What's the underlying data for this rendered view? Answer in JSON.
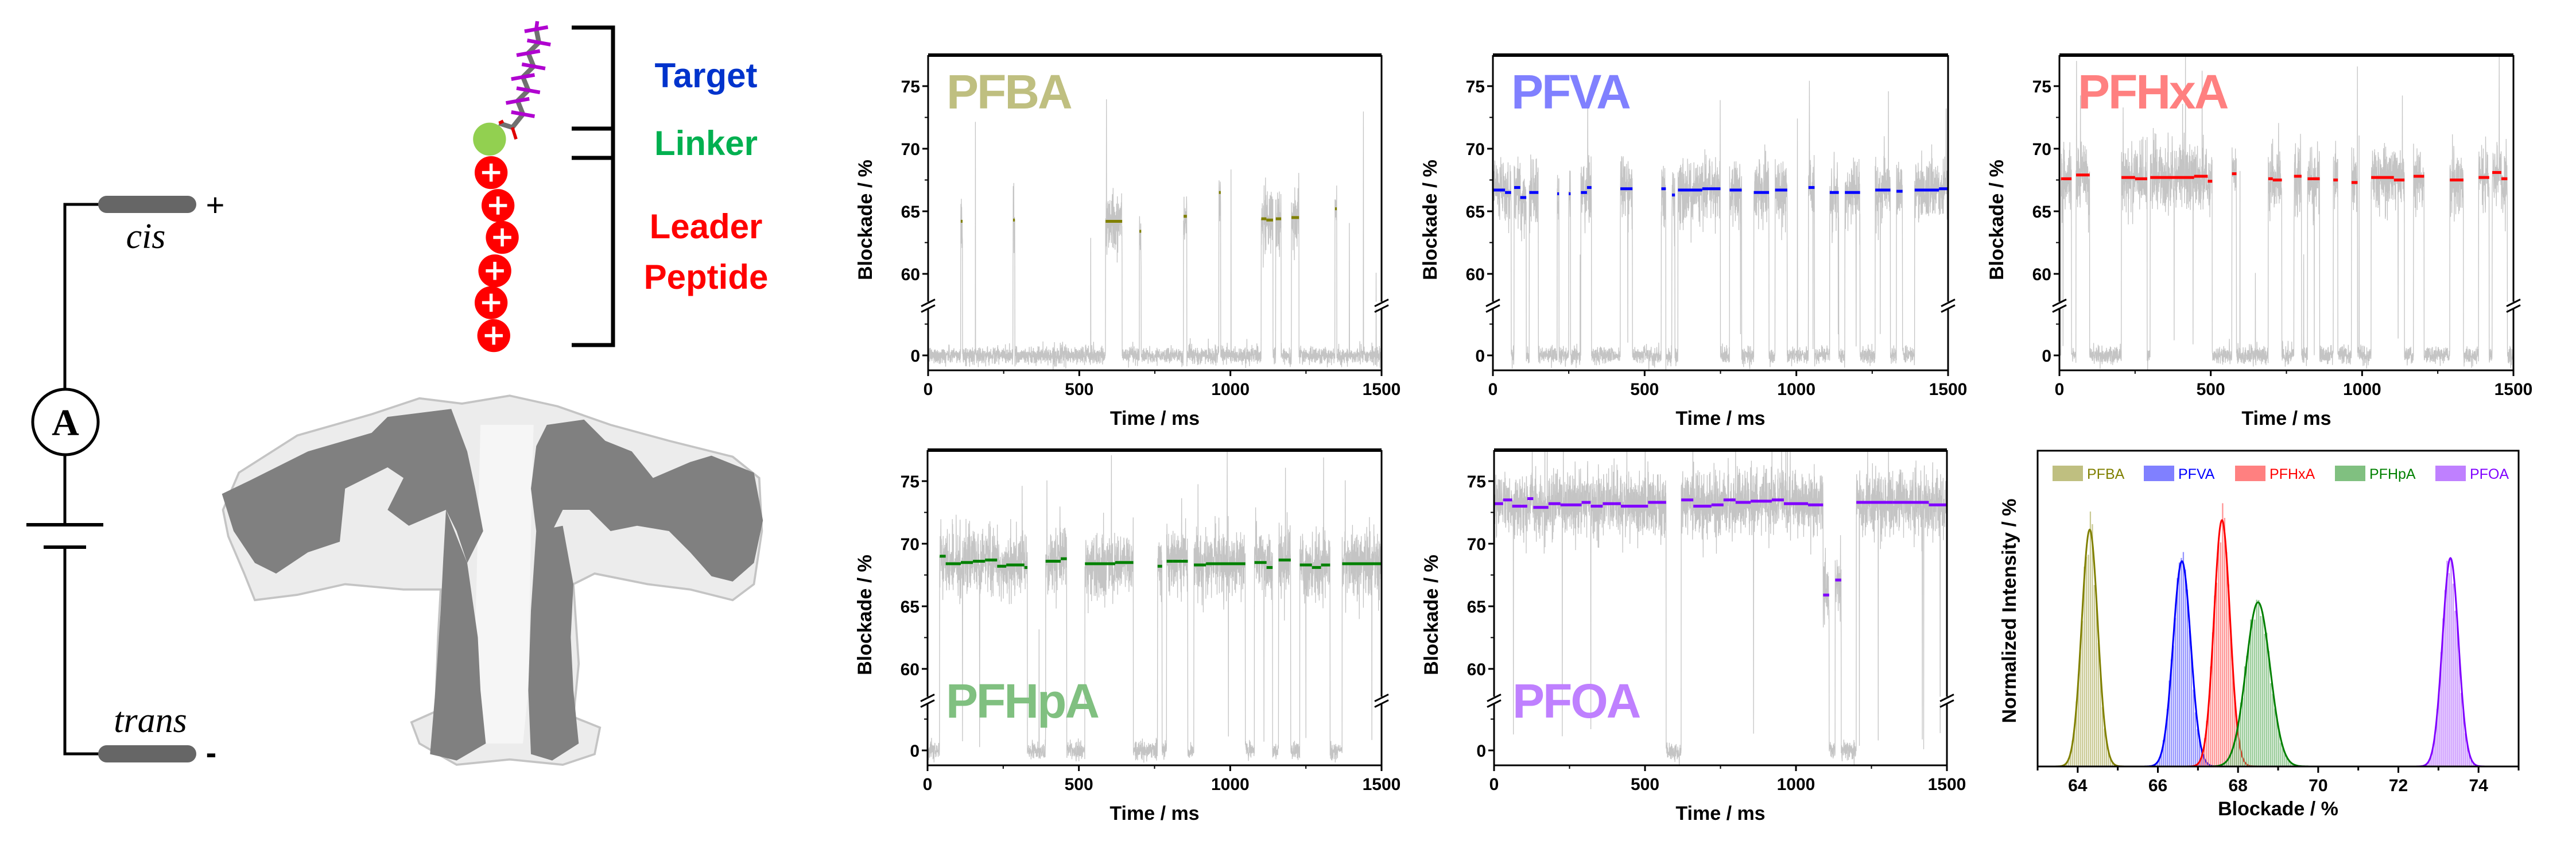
{
  "circuit": {
    "cis_label": "cis",
    "trans_label": "trans",
    "plus_sign": "+",
    "minus_sign": "-",
    "ammeter_label": "A"
  },
  "molecule": {
    "target_label": "Target",
    "linker_label": "Linker",
    "leader_label": "Leader",
    "peptide_label": "Peptide",
    "colors": {
      "target": "#0033cc",
      "linker": "#00b050",
      "leader": "#ff0000",
      "bead": "#ff0000",
      "linker_bead": "#92d050",
      "fluorine": "#b000d0",
      "carbon": "#707070"
    }
  },
  "pore": {
    "surface_color": "#ececec",
    "section_color": "#808080"
  },
  "chart_data": [
    {
      "type": "line",
      "label": "PFBA",
      "label_color": "#bfbf80",
      "fit_color": "#808000",
      "label_position": "top-left",
      "xlabel": "Time / ms",
      "ylabel": "Blockade / %",
      "xlim": [
        0,
        1500
      ],
      "ylim_upper": [
        57.5,
        77.5
      ],
      "ylim_lower": [
        -1.2,
        3.9
      ],
      "axis_break": true,
      "xticks": [
        0,
        500,
        1000,
        1500
      ],
      "yticks": [
        0,
        60,
        65,
        70,
        75
      ],
      "open_level": 0,
      "events": [
        [
          108,
          114,
          64.2
        ],
        [
          281,
          287,
          64.3
        ],
        [
          587,
          642,
          64.2
        ],
        [
          699,
          705,
          63.4
        ],
        [
          845,
          856,
          64.6
        ],
        [
          962,
          968,
          66.5
        ],
        [
          1102,
          1119,
          64.4
        ],
        [
          1119,
          1141,
          64.3
        ],
        [
          1150,
          1168,
          64.4
        ],
        [
          1202,
          1227,
          64.5
        ],
        [
          1346,
          1352,
          65.2
        ]
      ]
    },
    {
      "type": "line",
      "label": "PFVA",
      "label_color": "#8080ff",
      "fit_color": "#0000ff",
      "label_position": "top-left",
      "xlabel": "Time / ms",
      "ylabel": "Blockade / %",
      "xlim": [
        0,
        1500
      ],
      "ylim_upper": [
        57.5,
        77.5
      ],
      "ylim_lower": [
        -1.2,
        3.9
      ],
      "axis_break": true,
      "xticks": [
        0,
        500,
        1000,
        1500
      ],
      "yticks": [
        0,
        60,
        65,
        70,
        75
      ],
      "open_level": 0,
      "events": [
        [
          0,
          40,
          66.7
        ],
        [
          40,
          60,
          66.5
        ],
        [
          70,
          90,
          66.9
        ],
        [
          90,
          110,
          66.1
        ],
        [
          120,
          150,
          66.5
        ],
        [
          212,
          218,
          66.4
        ],
        [
          250,
          256,
          66.4
        ],
        [
          290,
          310,
          66.5
        ],
        [
          310,
          325,
          66.9
        ],
        [
          420,
          460,
          66.8
        ],
        [
          555,
          570,
          66.8
        ],
        [
          590,
          600,
          66.3
        ],
        [
          610,
          690,
          66.7
        ],
        [
          690,
          750,
          66.8
        ],
        [
          780,
          820,
          66.7
        ],
        [
          860,
          910,
          66.5
        ],
        [
          930,
          970,
          66.7
        ],
        [
          1040,
          1060,
          66.9
        ],
        [
          1110,
          1140,
          66.5
        ],
        [
          1160,
          1210,
          66.5
        ],
        [
          1260,
          1310,
          66.7
        ],
        [
          1330,
          1350,
          66.6
        ],
        [
          1390,
          1470,
          66.7
        ],
        [
          1470,
          1500,
          66.8
        ]
      ]
    },
    {
      "type": "line",
      "label": "PFHxA",
      "label_color": "#ff8080",
      "fit_color": "#ff0000",
      "label_position": "top-left",
      "xlabel": "Time / ms",
      "ylabel": "Blockade / %",
      "xlim": [
        0,
        1500
      ],
      "ylim_upper": [
        57.5,
        77.5
      ],
      "ylim_lower": [
        -1.2,
        3.9
      ],
      "axis_break": true,
      "xticks": [
        0,
        500,
        1000,
        1500
      ],
      "yticks": [
        0,
        60,
        65,
        70,
        75
      ],
      "open_level": 0,
      "events": [
        [
          5,
          40,
          67.6
        ],
        [
          55,
          100,
          67.9
        ],
        [
          205,
          250,
          67.7
        ],
        [
          250,
          290,
          67.6
        ],
        [
          300,
          445,
          67.7
        ],
        [
          445,
          490,
          67.8
        ],
        [
          490,
          505,
          67.4
        ],
        [
          570,
          585,
          68.0
        ],
        [
          690,
          705,
          67.6
        ],
        [
          705,
          735,
          67.5
        ],
        [
          775,
          800,
          67.8
        ],
        [
          820,
          860,
          67.6
        ],
        [
          905,
          920,
          67.5
        ],
        [
          965,
          985,
          67.3
        ],
        [
          1030,
          1105,
          67.7
        ],
        [
          1105,
          1140,
          67.5
        ],
        [
          1170,
          1205,
          67.8
        ],
        [
          1290,
          1335,
          67.5
        ],
        [
          1385,
          1420,
          67.7
        ],
        [
          1430,
          1460,
          68.1
        ],
        [
          1460,
          1480,
          67.6
        ]
      ]
    },
    {
      "type": "line",
      "label": "PFHpA",
      "label_color": "#80c080",
      "fit_color": "#008000",
      "label_position": "bottom-left",
      "xlabel": "Time / ms",
      "ylabel": "Blockade / %",
      "xlim": [
        0,
        1500
      ],
      "ylim_upper": [
        57.5,
        77.5
      ],
      "ylim_lower": [
        -1.2,
        3.9
      ],
      "axis_break": true,
      "xticks": [
        0,
        500,
        1000,
        1500
      ],
      "yticks": [
        0,
        60,
        65,
        70,
        75
      ],
      "open_level": 0,
      "events": [
        [
          40,
          60,
          69.0
        ],
        [
          60,
          110,
          68.4
        ],
        [
          110,
          150,
          68.5
        ],
        [
          150,
          190,
          68.6
        ],
        [
          190,
          230,
          68.7
        ],
        [
          230,
          260,
          68.2
        ],
        [
          260,
          320,
          68.3
        ],
        [
          320,
          330,
          68.1
        ],
        [
          390,
          440,
          68.6
        ],
        [
          440,
          460,
          68.8
        ],
        [
          520,
          620,
          68.4
        ],
        [
          620,
          680,
          68.5
        ],
        [
          760,
          775,
          68.2
        ],
        [
          790,
          810,
          68.6
        ],
        [
          810,
          860,
          68.6
        ],
        [
          880,
          920,
          68.3
        ],
        [
          920,
          1050,
          68.4
        ],
        [
          1080,
          1120,
          68.5
        ],
        [
          1120,
          1140,
          68.1
        ],
        [
          1160,
          1200,
          68.7
        ],
        [
          1230,
          1270,
          68.3
        ],
        [
          1270,
          1300,
          68.1
        ],
        [
          1300,
          1330,
          68.3
        ],
        [
          1370,
          1500,
          68.4
        ]
      ]
    },
    {
      "type": "line",
      "label": "PFOA",
      "label_color": "#bf80ff",
      "fit_color": "#8000ff",
      "label_position": "bottom-left",
      "xlabel": "Time / ms",
      "ylabel": "Blockade / %",
      "xlim": [
        0,
        1500
      ],
      "ylim_upper": [
        57.5,
        77.5
      ],
      "ylim_lower": [
        -1.2,
        3.9
      ],
      "axis_break": true,
      "xticks": [
        0,
        500,
        1000,
        1500
      ],
      "yticks": [
        0,
        60,
        65,
        70,
        75
      ],
      "open_level": 0,
      "events": [
        [
          0,
          30,
          73.2
        ],
        [
          30,
          60,
          73.5
        ],
        [
          60,
          110,
          73.0
        ],
        [
          110,
          130,
          73.6
        ],
        [
          130,
          180,
          72.9
        ],
        [
          180,
          220,
          73.2
        ],
        [
          220,
          290,
          73.1
        ],
        [
          290,
          320,
          73.3
        ],
        [
          320,
          360,
          73.0
        ],
        [
          360,
          420,
          73.2
        ],
        [
          420,
          510,
          73.0
        ],
        [
          510,
          570,
          73.3
        ],
        [
          620,
          660,
          73.5
        ],
        [
          660,
          720,
          73.0
        ],
        [
          720,
          760,
          73.1
        ],
        [
          760,
          800,
          73.5
        ],
        [
          800,
          850,
          73.3
        ],
        [
          850,
          920,
          73.4
        ],
        [
          920,
          960,
          73.5
        ],
        [
          960,
          1000,
          73.2
        ],
        [
          1000,
          1040,
          73.2
        ],
        [
          1040,
          1090,
          73.1
        ],
        [
          1090,
          1110,
          65.9
        ],
        [
          1130,
          1150,
          67.1
        ],
        [
          1200,
          1320,
          73.3
        ],
        [
          1320,
          1440,
          73.3
        ],
        [
          1440,
          1500,
          73.1
        ]
      ]
    },
    {
      "type": "bar",
      "xlabel": "Blockade / %",
      "ylabel": "Normalized Intensity / %",
      "xlim": [
        63,
        75
      ],
      "xticks": [
        64,
        66,
        68,
        70,
        72,
        74
      ],
      "legend": "top",
      "grid": false,
      "series": [
        {
          "name": "PFBA",
          "mean": 64.3,
          "sigma": 0.2,
          "peak": 0.75,
          "bar_color": "#bfbf80",
          "fit_color": "#808000"
        },
        {
          "name": "PFVA",
          "mean": 66.6,
          "sigma": 0.22,
          "peak": 0.65,
          "bar_color": "#8080ff",
          "fit_color": "#0000ff"
        },
        {
          "name": "PFHxA",
          "mean": 67.6,
          "sigma": 0.2,
          "peak": 0.78,
          "bar_color": "#ff8080",
          "fit_color": "#ff0000"
        },
        {
          "name": "PFHpA",
          "mean": 68.5,
          "sigma": 0.3,
          "peak": 0.52,
          "bar_color": "#80c080",
          "fit_color": "#008000"
        },
        {
          "name": "PFOA",
          "mean": 73.3,
          "sigma": 0.2,
          "peak": 0.66,
          "bar_color": "#bf80ff",
          "fit_color": "#8000ff"
        }
      ]
    }
  ]
}
